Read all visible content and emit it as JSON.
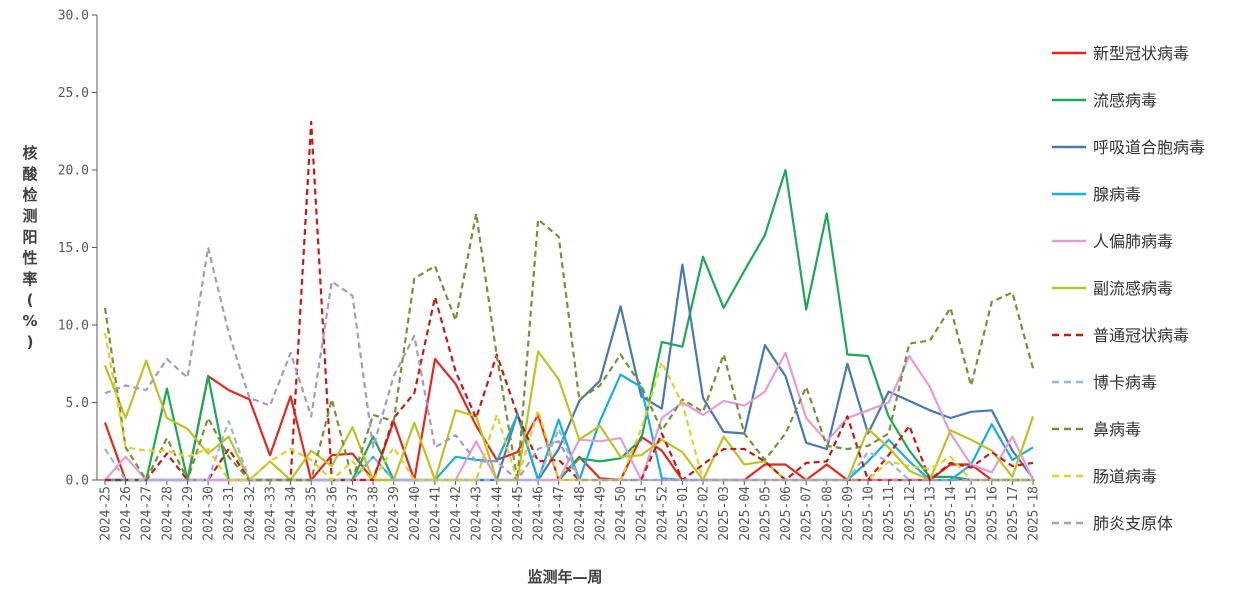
{
  "chart_data": {
    "type": "line",
    "ylabel": "核酸检测阳性率(%)",
    "xlabel": "监测年—周",
    "ylim": [
      0,
      30
    ],
    "yticks": [
      "0.0",
      "5.0",
      "10.0",
      "15.0",
      "20.0",
      "25.0",
      "30.0"
    ],
    "categories": [
      "2024-25",
      "2024-26",
      "2024-27",
      "2024-28",
      "2024-29",
      "2024-30",
      "2024-31",
      "2024-32",
      "2024-33",
      "2024-34",
      "2024-35",
      "2024-36",
      "2024-37",
      "2024-38",
      "2024-39",
      "2024-40",
      "2024-41",
      "2024-42",
      "2024-43",
      "2024-44",
      "2024-45",
      "2024-46",
      "2024-47",
      "2024-48",
      "2024-49",
      "2024-50",
      "2024-51",
      "2024-52",
      "2025-01",
      "2025-02",
      "2025-03",
      "2025-04",
      "2025-05",
      "2025-06",
      "2025-07",
      "2025-08",
      "2025-09",
      "2025-10",
      "2025-11",
      "2025-12",
      "2025-13",
      "2025-14",
      "2025-15",
      "2025-16",
      "2025-17",
      "2025-18"
    ],
    "legend_position": "right",
    "grid": false,
    "series": [
      {
        "name": "新型冠状病毒",
        "color": "#e8261f",
        "dash": false,
        "values": [
          3.7,
          0,
          0,
          0,
          0,
          6.7,
          5.8,
          5.2,
          1.6,
          5.4,
          0,
          1.6,
          1.7,
          0,
          3.8,
          0,
          7.8,
          6.2,
          3.5,
          1.3,
          1.8,
          4.2,
          0,
          1.5,
          0.1,
          0,
          2.8,
          1.9,
          0,
          0,
          0,
          0,
          1,
          1,
          0,
          1,
          0,
          0,
          0,
          0,
          0,
          1,
          1,
          0,
          0,
          0
        ]
      },
      {
        "name": "流感病毒",
        "color": "#1aaa55",
        "dash": false,
        "values": [
          0,
          0,
          0,
          5.9,
          0,
          6.7,
          0,
          0,
          0,
          0,
          0,
          0,
          0,
          2.8,
          0,
          0,
          0,
          0,
          0,
          0,
          0,
          0,
          0,
          1.4,
          1.2,
          1.4,
          2.6,
          8.9,
          8.6,
          14.4,
          11.1,
          13.5,
          15.8,
          20,
          11,
          17.2,
          8.1,
          8,
          4.1,
          1.9,
          0.2,
          0.2,
          0,
          0,
          0,
          0
        ]
      },
      {
        "name": "呼吸道合胞病毒",
        "color": "#4a78b5",
        "dash": false,
        "values": [
          0,
          0,
          0,
          0,
          0,
          0,
          0,
          0,
          0,
          0,
          0,
          0,
          0,
          0,
          0,
          0,
          0,
          0,
          0,
          0,
          4.3,
          0,
          2,
          5.1,
          6.4,
          11.2,
          5.4,
          4.6,
          13.9,
          5.3,
          3.1,
          3.0,
          8.7,
          6.7,
          2.4,
          2,
          7.5,
          3,
          5.7,
          5.1,
          4.5,
          4,
          4.4,
          4.5,
          1.9,
          0.1
        ]
      },
      {
        "name": "腺病毒",
        "color": "#16b0e0",
        "dash": false,
        "values": [
          0,
          0,
          0,
          0,
          0,
          0,
          0,
          0,
          0,
          0,
          0,
          0,
          0,
          1.5,
          0,
          0,
          0,
          1.5,
          1.3,
          1.2,
          4.2,
          0,
          3.9,
          0,
          3.8,
          6.8,
          6,
          0.1,
          0,
          0,
          0,
          0,
          0,
          0,
          0,
          0,
          0,
          1.2,
          2.6,
          1.2,
          0,
          0,
          1,
          3.6,
          1.3,
          2.1
        ]
      },
      {
        "name": "人偏肺病毒",
        "color": "#e49cd8",
        "dash": false,
        "values": [
          0,
          1.5,
          0,
          0,
          0,
          0,
          0,
          0,
          0,
          0,
          0,
          0,
          0,
          0,
          0,
          0,
          0,
          0,
          2.5,
          0,
          0,
          0,
          0,
          2.6,
          2.5,
          2.7,
          0,
          4,
          5,
          4.2,
          5.1,
          4.8,
          5.7,
          8.2,
          4,
          2.5,
          4,
          4.5,
          5,
          8,
          6,
          3,
          1,
          0.5,
          2.8,
          0
        ]
      },
      {
        "name": "副流感病毒",
        "color": "#bcc423",
        "dash": false,
        "values": [
          7.4,
          4.0,
          7.7,
          4,
          3.3,
          1.7,
          2.8,
          0,
          1.2,
          0,
          1.9,
          0.9,
          3.4,
          0,
          0,
          3.7,
          0,
          4.5,
          4.1,
          0,
          0,
          8.3,
          6.5,
          2.6,
          3.5,
          1.5,
          1.6,
          2.6,
          1.8,
          0,
          2.8,
          1,
          1.2,
          0,
          0,
          0,
          0,
          3.3,
          2.1,
          0.6,
          0,
          3.2,
          2.6,
          1.9,
          0.2,
          4.1
        ]
      },
      {
        "name": "普通冠状病毒",
        "color": "#c51a15",
        "dash": true,
        "values": [
          0,
          0,
          0,
          1.7,
          0,
          0,
          2,
          0,
          0,
          0,
          23.1,
          0,
          0,
          0,
          4,
          5.6,
          11.8,
          7,
          4,
          8.1,
          4.2,
          1.2,
          1.3,
          0,
          0,
          0,
          0,
          3,
          0,
          1,
          2,
          2,
          1.2,
          0,
          1.1,
          1.2,
          4.1,
          0,
          1.6,
          3.5,
          0,
          1.1,
          0.8,
          1.8,
          0.9,
          1.1
        ]
      },
      {
        "name": "博卡病毒",
        "color": "#9cb6e0",
        "dash": true,
        "values": [
          2,
          0,
          0,
          0,
          0,
          0,
          3.8,
          0,
          0,
          0,
          0,
          0,
          0,
          1.5,
          0,
          0,
          0,
          0,
          0,
          0,
          0,
          0,
          3.3,
          0,
          0,
          0,
          0,
          0,
          0,
          0,
          0,
          0,
          0,
          0,
          0,
          0,
          0,
          1.8,
          1.2,
          0,
          0,
          0,
          0,
          0,
          0,
          0
        ]
      },
      {
        "name": "鼻病毒",
        "color": "#7b8f3a",
        "dash": true,
        "values": [
          11.1,
          2.1,
          0,
          2.7,
          0,
          4,
          1.5,
          0,
          0,
          0,
          0,
          5.2,
          0,
          4.2,
          3.8,
          13,
          13.8,
          10.3,
          17.2,
          8,
          0,
          16.8,
          15.7,
          5.2,
          6.1,
          8.1,
          6.1,
          3.2,
          5.2,
          4.4,
          8.1,
          3,
          1.3,
          3,
          6,
          2.2,
          2,
          2.2,
          3,
          8.8,
          9,
          11.1,
          6.1,
          11.5,
          12.1,
          7.2
        ]
      },
      {
        "name": "肠道病毒",
        "color": "#e2d226",
        "dash": true,
        "values": [
          9.5,
          2.1,
          1.9,
          1.9,
          1.5,
          2,
          0,
          0,
          1.2,
          2,
          1.3,
          0,
          1.2,
          0,
          2.1,
          0,
          0,
          0,
          0,
          4.2,
          0,
          4.5,
          0,
          0,
          0,
          0,
          3.3,
          7.6,
          4.9,
          0,
          0,
          0,
          0,
          0,
          0,
          0,
          0,
          0,
          1.2,
          0.9,
          0.7,
          1.5,
          0,
          0,
          0,
          0
        ]
      },
      {
        "name": "肺炎支原体",
        "color": "#a99ac4",
        "dash": true,
        "values": [
          5.6,
          6.1,
          5.8,
          7.8,
          6.6,
          15,
          9.5,
          5.3,
          4.8,
          8.2,
          4.1,
          12.8,
          11.9,
          2.1,
          6.7,
          9.3,
          2.1,
          2.9,
          1.2,
          1.2,
          0,
          2,
          2.5,
          0,
          0,
          0,
          0,
          0,
          0,
          0,
          0,
          0,
          0,
          0,
          0,
          0,
          0,
          0,
          0,
          0,
          0,
          0,
          0,
          0,
          0,
          0
        ]
      }
    ]
  }
}
